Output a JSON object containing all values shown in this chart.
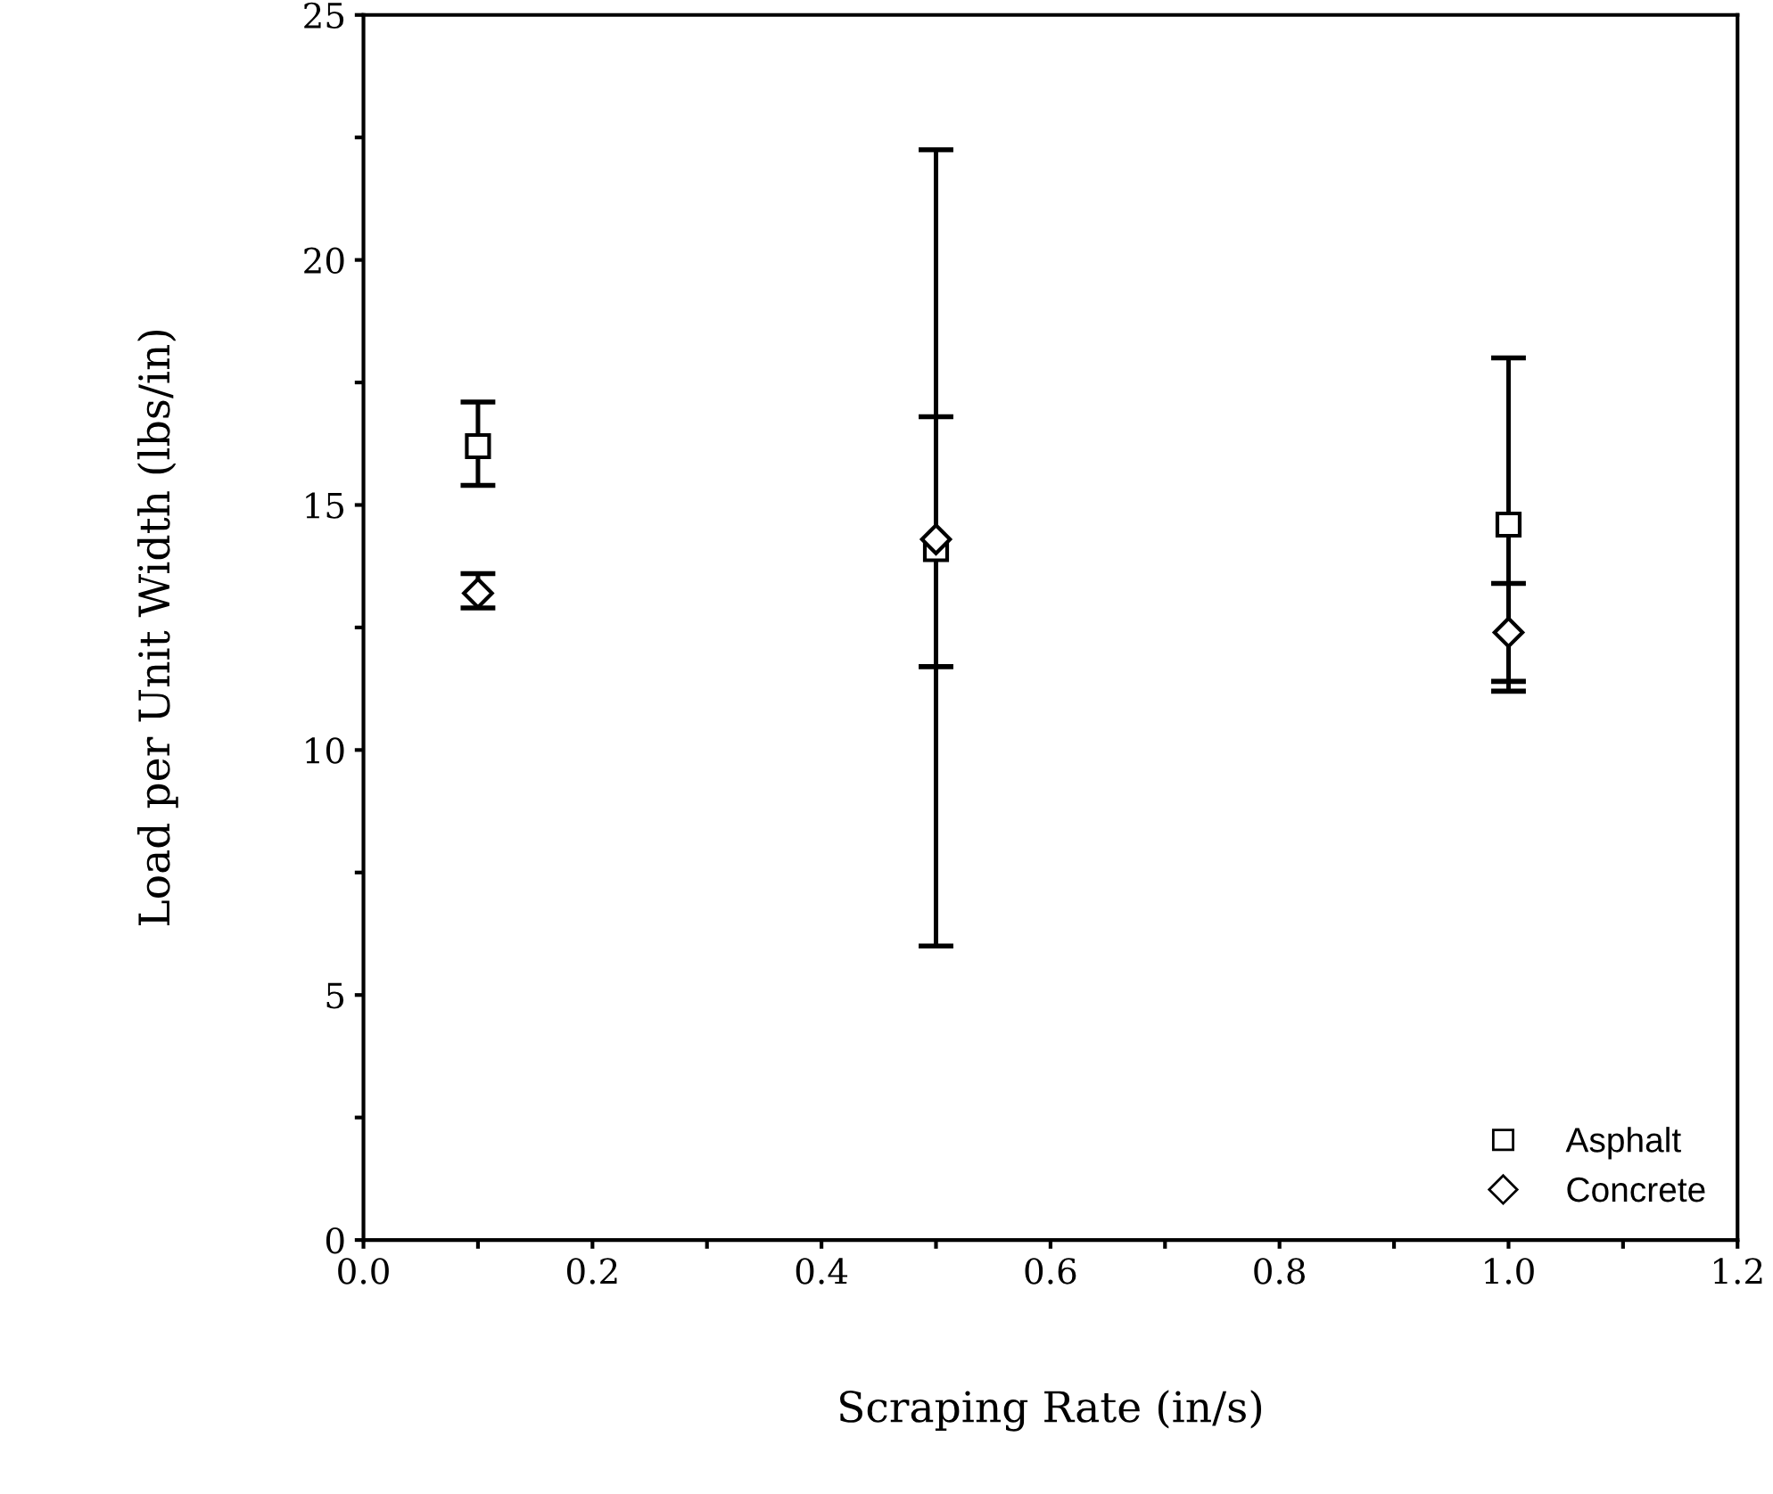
{
  "chart_data": {
    "type": "scatter",
    "xlabel": "Scraping Rate (in/s)",
    "ylabel": "Load per Unit Width (lbs/in)",
    "x": [
      0.1,
      0.5,
      1.0
    ],
    "series": [
      {
        "name": "Asphalt",
        "color": "#000000",
        "marker": "square",
        "values": [
          16.2,
          14.1,
          14.6
        ],
        "errors": [
          [
            15.4,
            17.1
          ],
          [
            6.0,
            22.25
          ],
          [
            11.2,
            18.0
          ]
        ]
      },
      {
        "name": "Concrete",
        "color": "#000000",
        "marker": "diamond",
        "values": [
          13.2,
          14.3,
          12.4
        ],
        "errors": [
          [
            12.9,
            13.6
          ],
          [
            11.7,
            16.8
          ],
          [
            11.4,
            13.4
          ]
        ]
      }
    ],
    "xlim": [
      0,
      1.2
    ],
    "ylim": [
      0,
      25
    ],
    "xticks": [
      {
        "value": 0,
        "label": "0.0"
      },
      {
        "value": 0.1,
        "label": null
      },
      {
        "value": 0.2,
        "label": "0.2"
      },
      {
        "value": 0.3,
        "label": null
      },
      {
        "value": 0.4,
        "label": "0.4"
      },
      {
        "value": 0.5,
        "label": null
      },
      {
        "value": 0.6,
        "label": "0.6"
      },
      {
        "value": 0.7,
        "label": null
      },
      {
        "value": 0.8,
        "label": "0.8"
      },
      {
        "value": 0.9,
        "label": null
      },
      {
        "value": 1.0,
        "label": "1.0"
      },
      {
        "value": 1.1,
        "label": null
      },
      {
        "value": 1.2,
        "label": "1.2"
      }
    ],
    "yticks": [
      0,
      {
        "value": 2.5,
        "label": null
      },
      5,
      {
        "value": 7.5,
        "label": null
      },
      10,
      {
        "value": 12.5,
        "label": null
      },
      15,
      {
        "value": 17.5,
        "label": null
      },
      20,
      {
        "value": 22.5,
        "label": null
      },
      25
    ],
    "grid": false,
    "legend": "bottom right"
  }
}
